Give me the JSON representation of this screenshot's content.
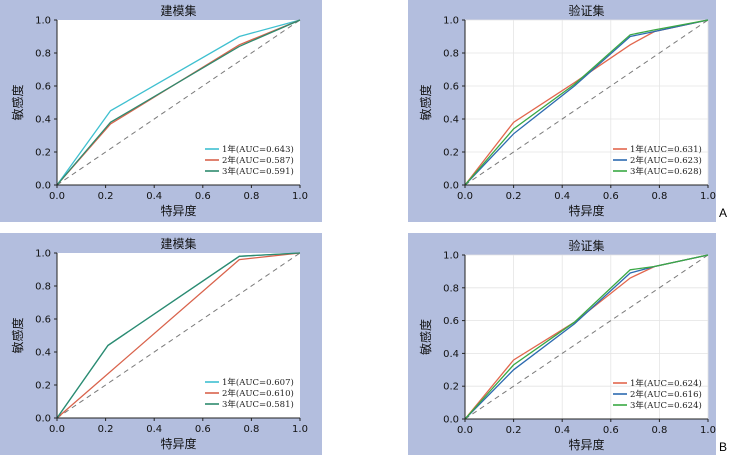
{
  "panel_tags": [
    "A",
    "B"
  ],
  "chart_data": [
    {
      "type": "line",
      "title": "建模集",
      "xlabel": "特异度",
      "ylabel": "敏感度",
      "xlim": [
        0.0,
        1.0
      ],
      "ylim": [
        0.0,
        1.0
      ],
      "xticks": [
        "0.0",
        "0.2",
        "0.4",
        "0.6",
        "0.8",
        "1.0"
      ],
      "yticks": [
        "0.0",
        "0.2",
        "0.4",
        "0.6",
        "0.8",
        "1.0"
      ],
      "grid": false,
      "legend_position": "bottom-right",
      "diagonal": true,
      "series": [
        {
          "name": "1年(AUC=0.643)",
          "color": "#3fc0d0",
          "x": [
            0,
            0.22,
            0.75,
            1.0
          ],
          "y": [
            0,
            0.45,
            0.9,
            1.0
          ]
        },
        {
          "name": "2年(AUC=0.587)",
          "color": "#d9634c",
          "x": [
            0,
            0.22,
            0.75,
            1.0
          ],
          "y": [
            0,
            0.37,
            0.85,
            1.0
          ]
        },
        {
          "name": "3年(AUC=0.591)",
          "color": "#2f8a6e",
          "x": [
            0,
            0.22,
            0.75,
            1.0
          ],
          "y": [
            0,
            0.38,
            0.84,
            1.0
          ]
        }
      ]
    },
    {
      "type": "line",
      "title": "验证集",
      "xlabel": "特异度",
      "ylabel": "敏感度",
      "xlim": [
        0.0,
        1.0
      ],
      "ylim": [
        0.0,
        1.0
      ],
      "xticks": [
        "0.0",
        "0.2",
        "0.4",
        "0.6",
        "0.8",
        "1.0"
      ],
      "yticks": [
        "0.0",
        "0.2",
        "0.4",
        "0.6",
        "0.8",
        "1.0"
      ],
      "grid": true,
      "legend_position": "bottom-right",
      "diagonal": true,
      "series": [
        {
          "name": "1年(AUC=0.631)",
          "color": "#e2674e",
          "x": [
            0,
            0.2,
            0.45,
            0.68,
            0.78,
            1.0
          ],
          "y": [
            0,
            0.38,
            0.62,
            0.85,
            0.93,
            1.0
          ]
        },
        {
          "name": "2年(AUC=0.623)",
          "color": "#2d6bb0",
          "x": [
            0,
            0.2,
            0.45,
            0.68,
            0.78,
            1.0
          ],
          "y": [
            0,
            0.31,
            0.6,
            0.9,
            0.93,
            1.0
          ]
        },
        {
          "name": "3年(AUC=0.628)",
          "color": "#3aa844",
          "x": [
            0,
            0.2,
            0.45,
            0.68,
            0.78,
            1.0
          ],
          "y": [
            0,
            0.34,
            0.61,
            0.91,
            0.94,
            1.0
          ]
        }
      ]
    },
    {
      "type": "line",
      "title": "建模集",
      "xlabel": "特异度",
      "ylabel": "敏感度",
      "xlim": [
        0.0,
        1.0
      ],
      "ylim": [
        0.0,
        1.0
      ],
      "xticks": [
        "0.0",
        "0.2",
        "0.4",
        "0.6",
        "0.8",
        "1.0"
      ],
      "yticks": [
        "0.0",
        "0.2",
        "0.4",
        "0.6",
        "0.8",
        "1.0"
      ],
      "grid": false,
      "legend_position": "bottom-right",
      "diagonal": true,
      "series": [
        {
          "name": "1年(AUC=0.607)",
          "color": "#3fc0d0",
          "x": [
            0,
            0.21,
            0.75,
            1.0
          ],
          "y": [
            0,
            0.44,
            0.98,
            1.0
          ]
        },
        {
          "name": "2年(AUC=0.610)",
          "color": "#d9634c",
          "x": [
            0,
            0.75,
            1.0
          ],
          "y": [
            0,
            0.96,
            1.0
          ]
        },
        {
          "name": "3年(AUC=0.581)",
          "color": "#2f8a6e",
          "x": [
            0,
            0.21,
            0.75,
            1.0
          ],
          "y": [
            0,
            0.44,
            0.98,
            1.0
          ]
        }
      ]
    },
    {
      "type": "line",
      "title": "验证集",
      "xlabel": "特异度",
      "ylabel": "敏感度",
      "xlim": [
        0.0,
        1.0
      ],
      "ylim": [
        0.0,
        1.0
      ],
      "xticks": [
        "0.0",
        "0.2",
        "0.4",
        "0.6",
        "0.8",
        "1.0"
      ],
      "yticks": [
        "0.0",
        "0.2",
        "0.4",
        "0.6",
        "0.8",
        "1.0"
      ],
      "grid": true,
      "legend_position": "bottom-right",
      "diagonal": true,
      "series": [
        {
          "name": "1年(AUC=0.624)",
          "color": "#e2674e",
          "x": [
            0,
            0.2,
            0.45,
            0.68,
            0.78,
            1.0
          ],
          "y": [
            0,
            0.36,
            0.59,
            0.86,
            0.93,
            1.0
          ]
        },
        {
          "name": "2年(AUC=0.616)",
          "color": "#2d6bb0",
          "x": [
            0,
            0.2,
            0.45,
            0.68,
            0.78,
            1.0
          ],
          "y": [
            0,
            0.3,
            0.58,
            0.89,
            0.93,
            1.0
          ]
        },
        {
          "name": "3年(AUC=0.624)",
          "color": "#3aa844",
          "x": [
            0,
            0.2,
            0.45,
            0.68,
            0.78,
            1.0
          ],
          "y": [
            0,
            0.33,
            0.59,
            0.91,
            0.93,
            1.0
          ]
        }
      ]
    }
  ]
}
